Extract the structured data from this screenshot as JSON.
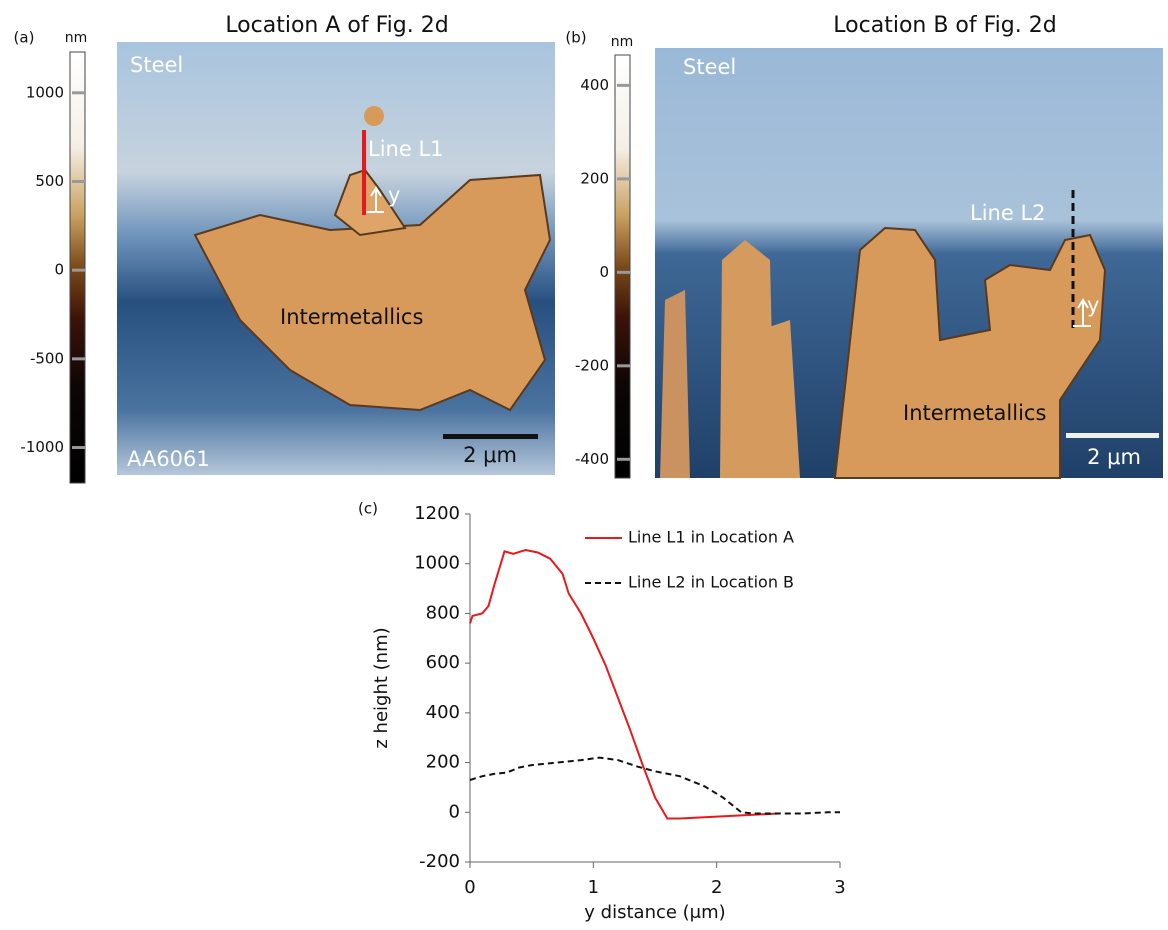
{
  "panels": [
    {
      "label": "(a)",
      "title": "Location A of Fig. 2d",
      "colorbar": {
        "unit": "nm",
        "lim": [
          -1200,
          1230
        ],
        "ticks": [
          1000,
          500,
          0,
          -500,
          -1000
        ]
      },
      "annotations": {
        "material_top": "Steel",
        "line": "Line L1",
        "axis": "y",
        "phase": "Intermetallics",
        "material_bottom": "AA6061",
        "scale": "2 μm"
      }
    },
    {
      "label": "(b)",
      "title": "Location B of Fig. 2d",
      "colorbar": {
        "unit": "nm",
        "lim": [
          -440,
          465
        ],
        "ticks": [
          400,
          200,
          0,
          -200,
          -400
        ]
      },
      "annotations": {
        "material_top": "Steel",
        "line": "Line L2",
        "axis": "y",
        "phase": "Intermetallics",
        "scale": "2 μm"
      }
    }
  ],
  "chart_data": {
    "type": "line",
    "label": "(c)",
    "xlabel": "y distance (μm)",
    "ylabel": "z height (nm)",
    "xlim": [
      0,
      3
    ],
    "xticks": [
      0,
      1,
      2,
      3
    ],
    "ylim": [
      -200,
      1200
    ],
    "yticks": [
      -200,
      0,
      200,
      400,
      600,
      800,
      1000,
      1200
    ],
    "legend": "upper right",
    "series": [
      {
        "name": "Line L1 in Location A",
        "color": "#e8191c",
        "dash": false,
        "x": [
          0,
          0.02,
          0.1,
          0.15,
          0.2,
          0.25,
          0.28,
          0.35,
          0.45,
          0.55,
          0.65,
          0.75,
          0.8,
          0.9,
          1.0,
          1.1,
          1.2,
          1.3,
          1.4,
          1.5,
          1.6,
          1.7,
          1.9,
          2.1,
          2.3,
          2.5
        ],
        "values": [
          760,
          790,
          800,
          830,
          920,
          1000,
          1050,
          1040,
          1055,
          1045,
          1020,
          960,
          880,
          800,
          700,
          590,
          460,
          330,
          190,
          60,
          -25,
          -25,
          -20,
          -15,
          -10,
          -5
        ]
      },
      {
        "name": "Line L2 in Location B",
        "color": "#111111",
        "dash": true,
        "x": [
          0,
          0.1,
          0.2,
          0.3,
          0.4,
          0.5,
          0.7,
          0.9,
          1.05,
          1.2,
          1.35,
          1.5,
          1.7,
          1.9,
          2.05,
          2.2,
          2.3,
          2.5,
          2.7,
          2.9,
          3.0
        ],
        "values": [
          130,
          145,
          155,
          160,
          180,
          190,
          200,
          210,
          220,
          210,
          185,
          165,
          145,
          105,
          60,
          0,
          -5,
          -5,
          -5,
          0,
          0
        ]
      }
    ]
  }
}
